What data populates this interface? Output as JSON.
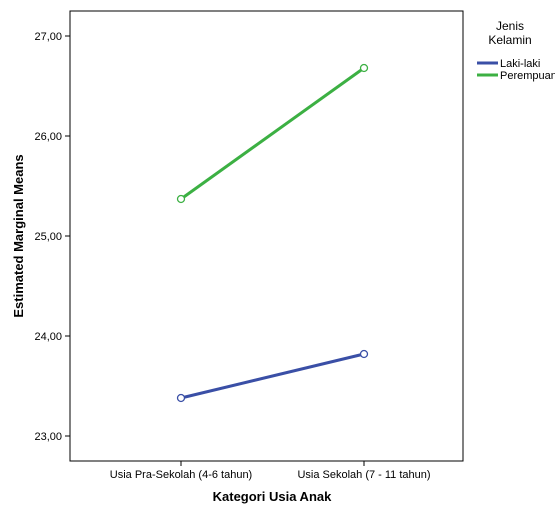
{
  "chart_data": {
    "type": "line",
    "xlabel": "Kategori Usia Anak",
    "ylabel": "Estimated Marginal Means",
    "categories": [
      "Usia Pra-Sekolah (4-6 tahun)",
      "Usia Sekolah (7 - 11 tahun)"
    ],
    "ylim": [
      22.75,
      27.25
    ],
    "yticks": [
      23,
      24,
      25,
      26,
      27
    ],
    "ytick_labels": [
      "23,00",
      "24,00",
      "25,00",
      "26,00",
      "27,00"
    ],
    "grid": false,
    "legend": {
      "title": "Jenis Kelamin",
      "title_lines": [
        "Jenis",
        "Kelamin"
      ],
      "placement": "top-right outside plot"
    },
    "series": [
      {
        "name": "Laki-laki",
        "values": [
          23.38,
          23.82
        ],
        "color": "#3a4fa6"
      },
      {
        "name": "Perempuan",
        "values": [
          25.37,
          26.68
        ],
        "color": "#3cb043"
      }
    ]
  }
}
